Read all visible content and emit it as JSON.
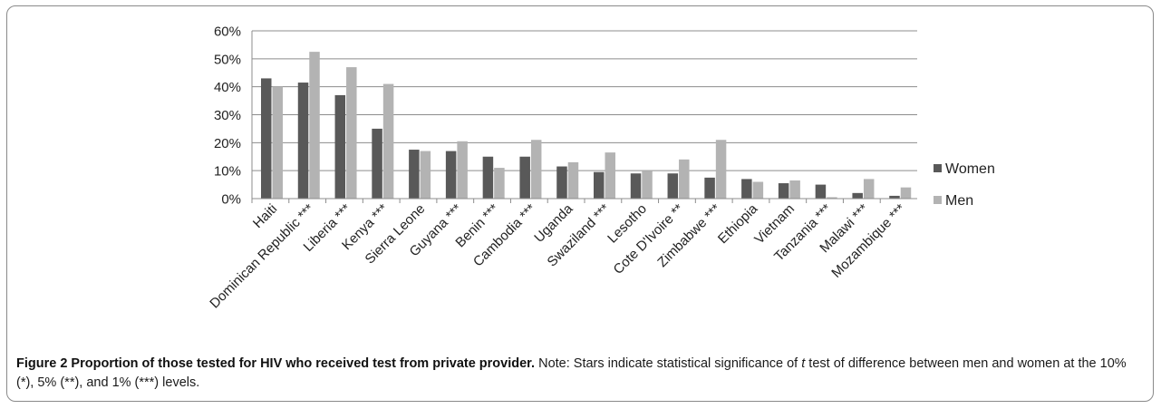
{
  "chart_data": {
    "type": "bar",
    "title": "",
    "xlabel": "",
    "ylabel": "",
    "ylim": [
      0,
      60
    ],
    "y_ticks": [
      "0%",
      "10%",
      "20%",
      "30%",
      "40%",
      "50%",
      "60%"
    ],
    "grid": true,
    "legend_position": "right",
    "categories": [
      "Haiti",
      "Dominican Republic ***",
      "Liberia ***",
      "Kenya ***",
      "Sierra Leone",
      "Guyana ***",
      "Benin ***",
      "Cambodia ***",
      "Uganda",
      "Swaziland ***",
      "Lesotho",
      "Cote D'Ivoire **",
      "Zimbabwe ***",
      "Ethiopia",
      "Vietnam",
      "Tanzania ***",
      "Malawi ***",
      "Mozambique ***"
    ],
    "series": [
      {
        "name": "Women",
        "color": "#595959",
        "values": [
          43,
          41.5,
          37,
          25,
          17.5,
          17,
          15,
          15,
          11.5,
          9.5,
          9,
          9,
          7.5,
          7,
          5.5,
          5,
          2,
          1
        ]
      },
      {
        "name": "Men",
        "color": "#b3b3b3",
        "values": [
          40,
          52.5,
          47,
          41,
          17,
          20.5,
          11,
          21,
          13,
          16.5,
          10,
          14,
          21,
          6,
          6.5,
          0.5,
          7,
          4
        ]
      }
    ]
  },
  "caption": {
    "title": "Figure 2 Proportion of those tested for HIV who received test from private provider.",
    "note_prefix": " Note: Stars indicate statistical significance of ",
    "note_italic": "t",
    "note_suffix": " test of difference between men and women at the 10% (*), 5% (**), and 1% (***) levels."
  }
}
